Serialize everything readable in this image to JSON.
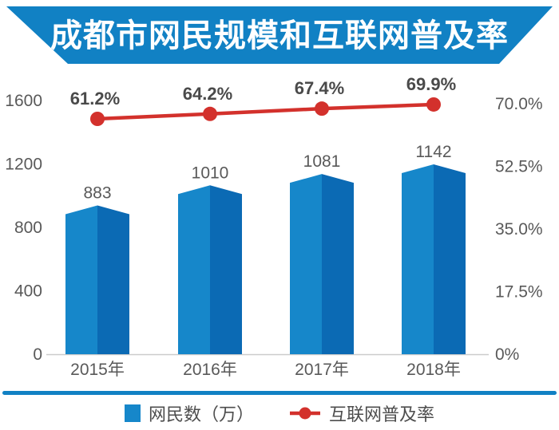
{
  "title": "成都市网民规模和互联网普及率",
  "colors": {
    "banner_blue": "#1181c4",
    "bar_light": "#1687ca",
    "bar_dark": "#0b6ab4",
    "line_red": "#d3312c",
    "axis_text": "#595959",
    "pct_label_text": "#4a4a4a",
    "baseline_gray": "#cccccc",
    "title_text": "#ffffff"
  },
  "chart_data": {
    "type": "bar+line",
    "title": "成都市网民规模和互联网普及率",
    "categories": [
      "2015年",
      "2016年",
      "2017年",
      "2018年"
    ],
    "series": [
      {
        "name": "网民数（万）",
        "type": "bar",
        "values": [
          883,
          1010,
          1081,
          1142
        ],
        "labels": [
          "883",
          "1010",
          "1081",
          "1142"
        ]
      },
      {
        "name": "互联网普及率",
        "type": "line",
        "values": [
          61.2,
          64.2,
          67.4,
          69.9
        ],
        "labels": [
          "61.2%",
          "64.2%",
          "67.4%",
          "69.9%"
        ]
      }
    ],
    "left_axis": {
      "min": 0,
      "max": 1600,
      "ticks": [
        1600,
        1200,
        800,
        400,
        0
      ],
      "tick_labels": [
        "1600",
        "1200",
        "800",
        "400",
        "0"
      ]
    },
    "right_axis": {
      "min": 0,
      "max": 70,
      "ticks": [
        70,
        52.5,
        35,
        17.5,
        0
      ],
      "tick_labels": [
        "70.0%",
        "52.5%",
        "35.0%",
        "17.5%",
        "0%"
      ]
    },
    "grid": false,
    "legend_position": "bottom"
  },
  "legend": {
    "bar_label": "网民数（万）",
    "line_label": "互联网普及率"
  }
}
